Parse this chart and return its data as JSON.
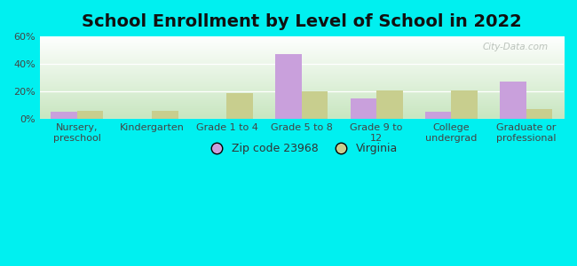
{
  "title": "School Enrollment by Level of School in 2022",
  "categories": [
    "Nursery,\npreschool",
    "Kindergarten",
    "Grade 1 to 4",
    "Grade 5 to 8",
    "Grade 9 to\n12",
    "College\nundergrad",
    "Graduate or\nprofessional"
  ],
  "zip_values": [
    5,
    0,
    0,
    47,
    15,
    5,
    27
  ],
  "va_values": [
    6,
    6,
    19,
    20,
    21,
    21,
    7
  ],
  "zip_color": "#c9a0dc",
  "va_color": "#c8ce8e",
  "background_outer": "#00f0f0",
  "grad_top": "#ffffff",
  "grad_bottom": "#c8e6c0",
  "grid_color": "#ffffff",
  "ylim": [
    0,
    60
  ],
  "yticks": [
    0,
    20,
    40,
    60
  ],
  "ytick_labels": [
    "0%",
    "20%",
    "40%",
    "60%"
  ],
  "legend_zip_label": "Zip code 23968",
  "legend_va_label": "Virginia",
  "watermark": "City-Data.com",
  "title_fontsize": 14,
  "tick_fontsize": 8,
  "legend_fontsize": 9,
  "bar_width": 0.35
}
